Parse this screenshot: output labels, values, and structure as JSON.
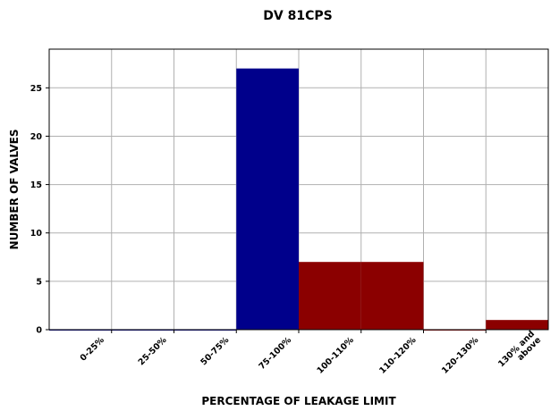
{
  "chart_data": {
    "type": "bar",
    "title": "DV 81CPS",
    "xlabel": "PERCENTAGE OF LEAKAGE LIMIT",
    "ylabel": "NUMBER OF VALVES",
    "categories": [
      "0-25%",
      "25-50%",
      "50-75%",
      "75-100%",
      "100-110%",
      "110-120%",
      "120-130%",
      "130% and\nabove"
    ],
    "values": [
      0,
      0,
      0,
      27,
      7,
      7,
      0,
      1
    ],
    "bar_colors": [
      "#00008b",
      "#00008b",
      "#00008b",
      "#00008b",
      "#8b0000",
      "#8b0000",
      "#8b0000",
      "#8b0000"
    ],
    "ylim": [
      0,
      29
    ],
    "yticks": [
      0,
      5,
      10,
      15,
      20,
      25
    ],
    "grid": true,
    "legend": "none"
  }
}
